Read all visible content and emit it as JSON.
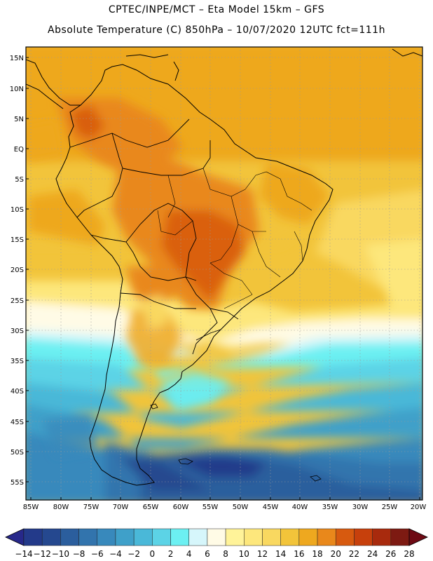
{
  "header": {
    "line1": "CPTEC/INPE/MCT –  Eta Model 15km – GFS",
    "line2": "Absolute Temperature (C) 850hPa – 10/07/2020 12UTC fct=111h"
  },
  "latitude_labels": [
    "15N",
    "10N",
    "5N",
    "EQ",
    "5S",
    "10S",
    "15S",
    "20S",
    "25S",
    "30S",
    "35S",
    "40S",
    "45S",
    "50S",
    "55S"
  ],
  "longitude_labels": [
    "85W",
    "80W",
    "75W",
    "70W",
    "65W",
    "60W",
    "55W",
    "50W",
    "45W",
    "40W",
    "35W",
    "30W",
    "25W",
    "20W"
  ],
  "colorbar": {
    "labels": [
      "-14",
      "-12",
      "-10",
      "-8",
      "-6",
      "-4",
      "-2",
      "0",
      "2",
      "4",
      "6",
      "8",
      "10",
      "12",
      "14",
      "16",
      "18",
      "20",
      "22",
      "24",
      "26",
      "28"
    ],
    "low_arrow_color": "#27288a",
    "high_arrow_color": "#6e0a14",
    "colors": [
      "#233a8a",
      "#25488f",
      "#2b5e9d",
      "#3274ad",
      "#3889bc",
      "#3fa0c9",
      "#4ab8d8",
      "#5cd3e6",
      "#6cf0f2",
      "#d6f6fb",
      "#fffbe6",
      "#fff399",
      "#fde77c",
      "#f9d860",
      "#f2c43a",
      "#eea81f",
      "#e9881b",
      "#d75a0f",
      "#c7400c",
      "#a82a0d",
      "#7d1a12"
    ]
  }
}
